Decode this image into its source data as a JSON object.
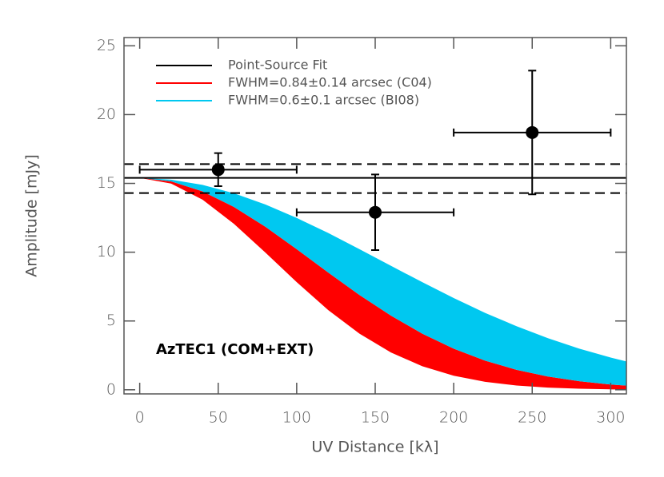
{
  "chart_data": {
    "type": "visibility",
    "x_label": "UV Distance [kλ]",
    "y_label": "Amplitude [mJy]",
    "annotation": "AzTEC1 (COM+EXT)",
    "xlim": [
      -10,
      310
    ],
    "ylim": [
      -0.3,
      25.6
    ],
    "xticks": [
      0,
      50,
      100,
      150,
      200,
      250,
      300
    ],
    "yticks": [
      0,
      5,
      10,
      15,
      20,
      25
    ],
    "x": [
      0,
      20,
      40,
      60,
      80,
      100,
      120,
      140,
      160,
      180,
      200,
      220,
      240,
      260,
      280,
      300,
      310
    ],
    "fit": {
      "name": "Point-Source Fit",
      "color": "#000000",
      "value": 15.4,
      "lower": 14.3,
      "upper": 16.4
    },
    "bands": [
      {
        "name": "FWHM=0.84±0.14 arcsec (C04)",
        "color": "#ff0000",
        "upper": [
          15.4,
          15.15,
          14.42,
          13.29,
          11.85,
          10.22,
          8.53,
          6.89,
          5.39,
          4.08,
          2.99,
          2.12,
          1.45,
          0.96,
          0.62,
          0.38,
          0.3
        ],
        "lower": [
          15.4,
          14.99,
          13.82,
          12.06,
          9.98,
          7.82,
          5.8,
          4.08,
          2.71,
          1.71,
          1.02,
          0.58,
          0.31,
          0.16,
          0.08,
          0.03,
          0.02
        ]
      },
      {
        "name": "FWHM=0.6±0.1 arcsec (BI08)",
        "color": "#00c8f0",
        "upper": [
          15.4,
          15.27,
          14.89,
          14.28,
          13.47,
          12.49,
          11.4,
          10.22,
          9.01,
          7.82,
          6.67,
          5.59,
          4.62,
          3.75,
          2.99,
          2.34,
          2.06
        ],
        "lower": [
          15.4,
          15.15,
          14.42,
          13.29,
          11.85,
          10.22,
          8.53,
          6.89,
          5.39,
          4.08,
          2.99,
          2.12,
          1.45,
          0.96,
          0.62,
          0.38,
          0.3
        ]
      }
    ],
    "points": {
      "color": "#000000",
      "x": [
        50,
        150,
        250
      ],
      "values": [
        16.0,
        12.9,
        18.7
      ],
      "xerr": [
        50,
        50,
        50
      ],
      "yerr": [
        1.2,
        2.75,
        4.5
      ]
    }
  }
}
